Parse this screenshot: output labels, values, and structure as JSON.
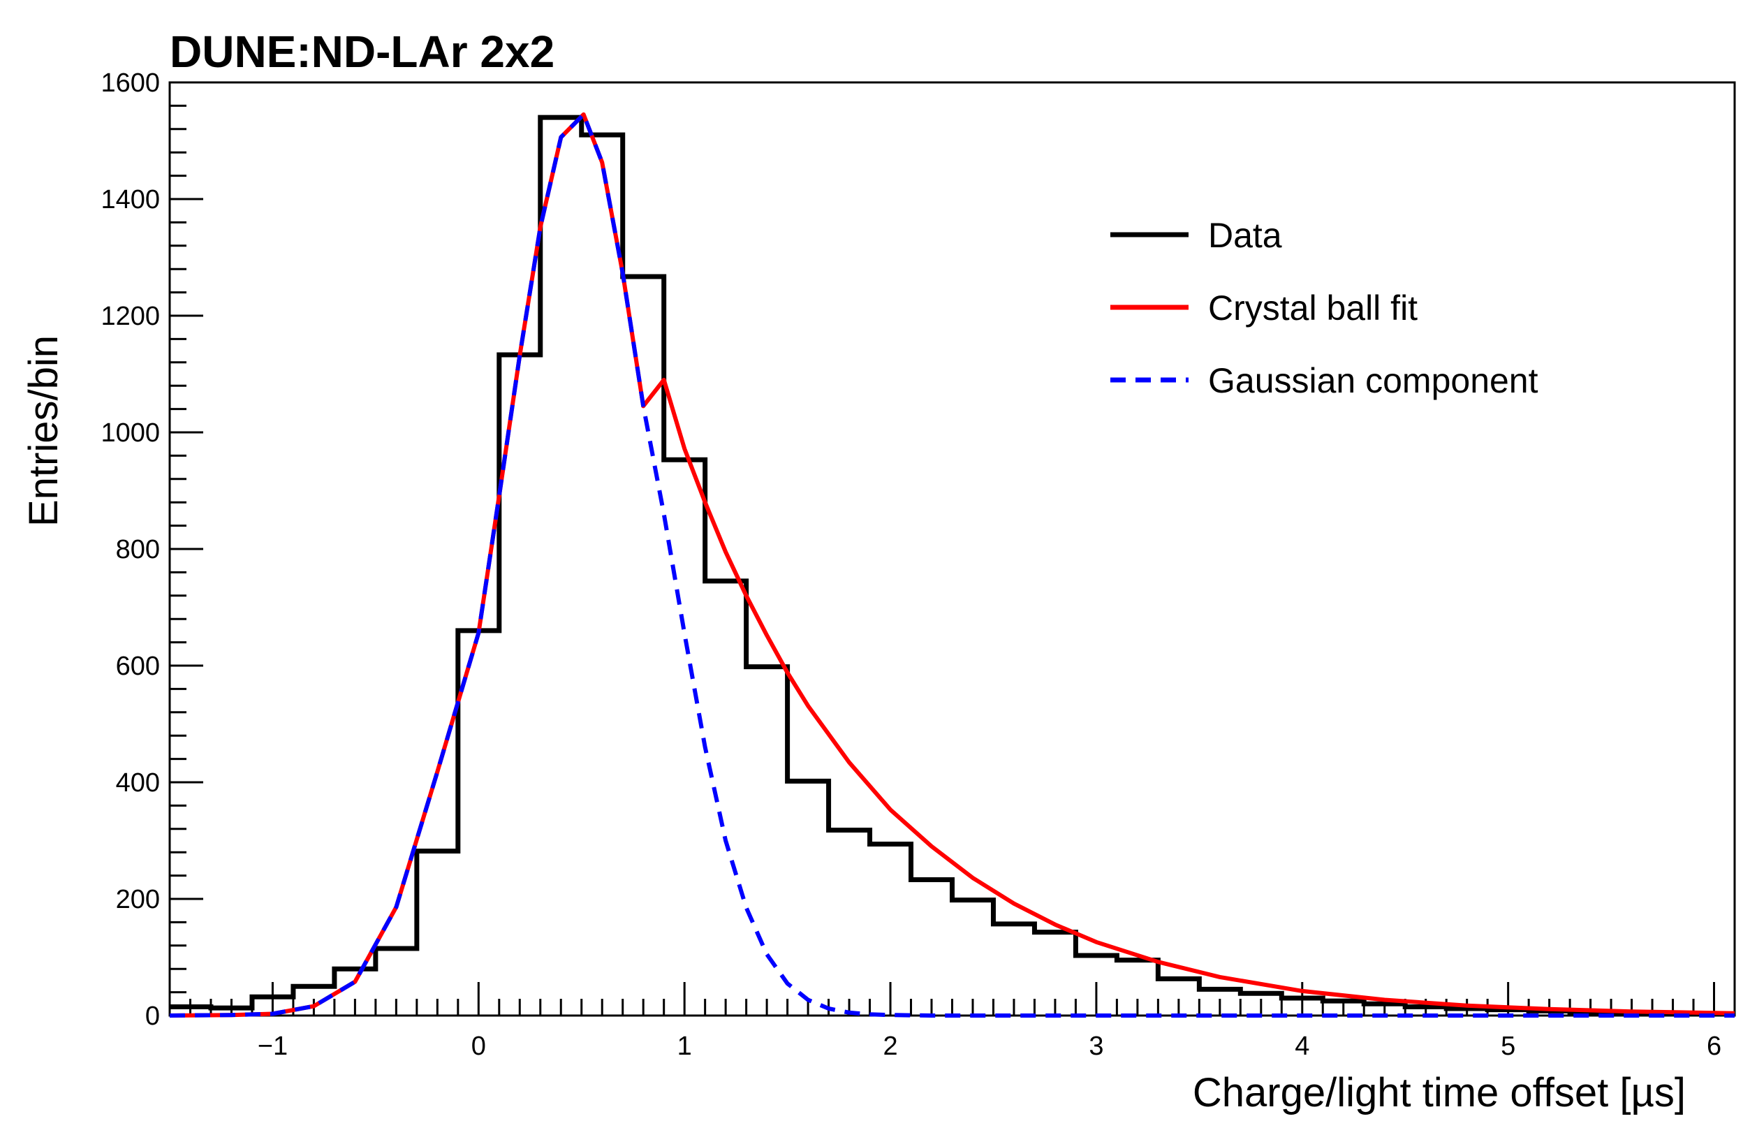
{
  "chart_data": {
    "type": "line",
    "title": "DUNE:ND-LAr 2x2",
    "xlabel": "Charge/light time offset [µs]",
    "ylabel": "Entries/bin",
    "xlim": [
      -1.5,
      6.1
    ],
    "ylim": [
      0,
      1600
    ],
    "grid": false,
    "legend_position": "top-right",
    "x_ticks": [
      {
        "value": -1,
        "label": "−1"
      },
      {
        "value": 0,
        "label": "0"
      },
      {
        "value": 1,
        "label": "1"
      },
      {
        "value": 2,
        "label": "2"
      },
      {
        "value": 3,
        "label": "3"
      },
      {
        "value": 4,
        "label": "4"
      },
      {
        "value": 5,
        "label": "5"
      },
      {
        "value": 6,
        "label": "6"
      }
    ],
    "y_ticks": [
      {
        "value": 0,
        "label": "0"
      },
      {
        "value": 200,
        "label": "200"
      },
      {
        "value": 400,
        "label": "400"
      },
      {
        "value": 600,
        "label": "600"
      },
      {
        "value": 800,
        "label": "800"
      },
      {
        "value": 1000,
        "label": "1000"
      },
      {
        "value": 1200,
        "label": "1200"
      },
      {
        "value": 1400,
        "label": "1400"
      },
      {
        "value": 1600,
        "label": "1600"
      }
    ],
    "bin_edges": [
      -1.5,
      -1.3,
      -1.1,
      -0.9,
      -0.7,
      -0.5,
      -0.3,
      -0.1,
      0.1,
      0.3,
      0.5,
      0.7,
      0.9,
      1.1,
      1.3,
      1.5,
      1.7,
      1.9,
      2.1,
      2.3,
      2.5,
      2.7,
      2.9,
      3.1,
      3.3,
      3.5,
      3.7,
      3.9,
      4.1,
      4.3,
      4.5,
      4.7,
      4.9,
      5.1,
      5.3,
      5.5,
      5.7,
      5.9,
      6.1
    ],
    "series": [
      {
        "name": "Data",
        "style": "histogram",
        "color": "#000000",
        "values": [
          15,
          13,
          32,
          50,
          80,
          115,
          282,
          660,
          1133,
          1540,
          1510,
          1267,
          953,
          745,
          598,
          402,
          318,
          294,
          233,
          198,
          157,
          143,
          103,
          95,
          63,
          45,
          38,
          30,
          25,
          20,
          15,
          12,
          10,
          8,
          6,
          5,
          4,
          3
        ]
      },
      {
        "name": "Crystal ball fit",
        "style": "curve",
        "color": "#ff0000",
        "mean": 0.51,
        "sigma": 0.29,
        "amplitude": 1545,
        "x": [
          -1.5,
          -1.2,
          -1.0,
          -0.8,
          -0.6,
          -0.4,
          -0.2,
          0.0,
          0.1,
          0.2,
          0.3,
          0.4,
          0.51,
          0.6,
          0.7,
          0.8,
          0.9,
          1.0,
          1.1,
          1.2,
          1.3,
          1.4,
          1.5,
          1.6,
          1.8,
          2.0,
          2.2,
          2.4,
          2.6,
          2.8,
          3.0,
          3.3,
          3.6,
          4.0,
          4.4,
          4.8,
          5.2,
          5.6,
          6.1
        ],
        "y": [
          0,
          1,
          3,
          16,
          58,
          186,
          418,
          656,
          891,
          1132,
          1352,
          1506,
          1545,
          1463,
          1273,
          1045,
          1090,
          972,
          880,
          795,
          720,
          652,
          588,
          531,
          434,
          353,
          290,
          236,
          192,
          156,
          126,
          92,
          66,
          42,
          27,
          17,
          11,
          7,
          4
        ]
      },
      {
        "name": "Gaussian component",
        "style": "dashed",
        "color": "#0000ff",
        "mean": 0.51,
        "sigma": 0.29,
        "amplitude": 1545,
        "x": [
          -1.5,
          -1.2,
          -1.0,
          -0.8,
          -0.6,
          -0.4,
          -0.2,
          0.0,
          0.1,
          0.2,
          0.3,
          0.4,
          0.51,
          0.6,
          0.7,
          0.8,
          0.9,
          1.0,
          1.1,
          1.2,
          1.3,
          1.4,
          1.5,
          1.6,
          1.7,
          1.8,
          1.9,
          2.0,
          2.2,
          2.5,
          3.0,
          4.0,
          5.0,
          6.1
        ],
        "y": [
          0,
          1,
          3,
          16,
          58,
          186,
          418,
          656,
          891,
          1132,
          1352,
          1506,
          1545,
          1463,
          1273,
          1045,
          860,
          655,
          460,
          300,
          185,
          105,
          55,
          27,
          12,
          5,
          2,
          1,
          0,
          0,
          0,
          0,
          0,
          0
        ]
      }
    ]
  }
}
